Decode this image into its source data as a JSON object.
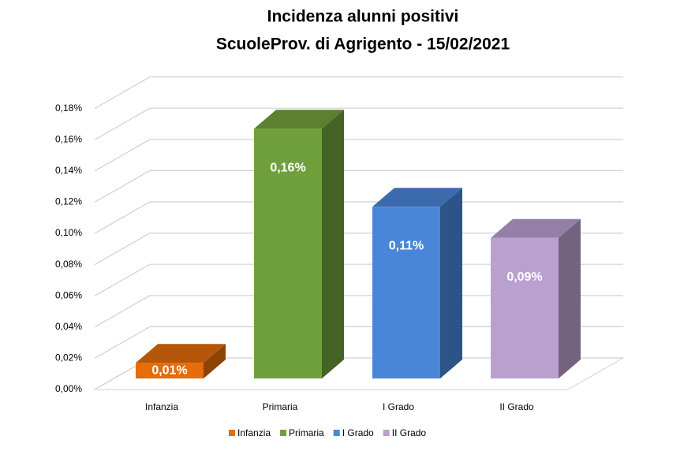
{
  "chart_data": {
    "type": "bar3d",
    "title": "Incidenza alunni positivi",
    "subtitle": "ScuoleProv. di Agrigento - 15/02/2021",
    "categories": [
      "Infanzia",
      "Primaria",
      "I Grado",
      "II Grado"
    ],
    "values": [
      0.01,
      0.16,
      0.11,
      0.09
    ],
    "value_labels": [
      "0,01%",
      "0,16%",
      "0,11%",
      "0,09%"
    ],
    "colors": [
      "#e46c0a",
      "#70a03c",
      "#4a86d8",
      "#b9a0cf"
    ],
    "ylim": [
      0,
      0.18
    ],
    "yticks": [
      {
        "value": 0,
        "label": "0,00%"
      },
      {
        "value": 0.02,
        "label": "0,02%"
      },
      {
        "value": 0.04,
        "label": "0,04%"
      },
      {
        "value": 0.06,
        "label": "0,06%"
      },
      {
        "value": 0.08,
        "label": "0,08%"
      },
      {
        "value": 0.1,
        "label": "0,10%"
      },
      {
        "value": 0.12,
        "label": "0,12%"
      },
      {
        "value": 0.14,
        "label": "0,14%"
      },
      {
        "value": 0.16,
        "label": "0,16%"
      },
      {
        "value": 0.18,
        "label": "0,18%"
      }
    ],
    "grid": true,
    "legend": "bottom"
  }
}
